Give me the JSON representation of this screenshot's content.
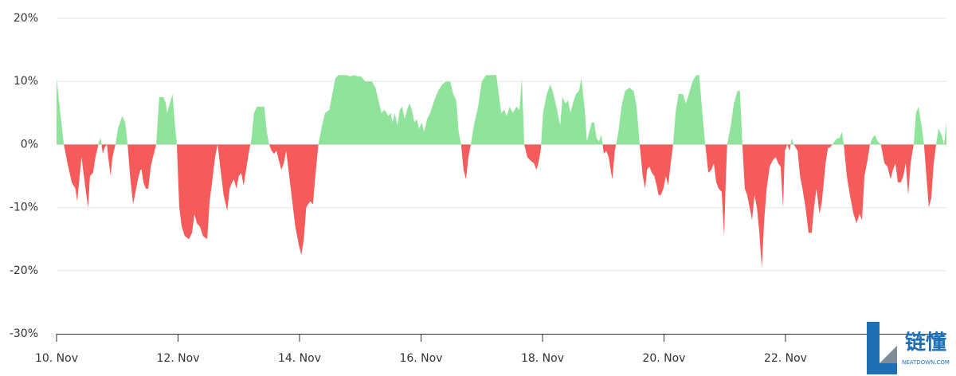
{
  "chart_data": {
    "type": "area",
    "x": [
      10.0,
      10.05,
      10.12,
      10.18,
      10.25,
      10.31,
      10.34,
      10.38,
      10.41,
      10.45,
      10.49,
      10.52,
      10.55,
      10.6,
      10.64,
      10.7,
      10.73,
      10.76,
      10.79,
      10.83,
      10.85,
      10.89,
      10.92,
      10.97,
      11.01,
      11.08,
      11.13,
      11.17,
      11.21,
      11.26,
      11.3,
      11.34,
      11.38,
      11.4,
      11.43,
      11.47,
      11.51,
      11.55,
      11.6,
      11.64,
      11.69,
      11.76,
      11.8,
      11.82,
      11.88,
      11.91,
      11.94,
      11.98,
      12.02,
      12.06,
      12.11,
      12.18,
      12.23,
      12.27,
      12.31,
      12.36,
      12.41,
      12.48,
      12.52,
      12.56,
      12.61,
      12.65,
      12.7,
      12.75,
      12.81,
      12.85,
      12.89,
      12.92,
      12.96,
      13.0,
      13.04,
      13.08,
      13.12,
      13.17,
      13.21,
      13.25,
      13.3,
      13.37,
      13.42,
      13.46,
      13.5,
      13.54,
      13.58,
      13.62,
      13.66,
      13.7,
      13.74,
      13.78,
      13.83,
      13.88,
      13.93,
      13.99,
      14.03,
      14.07,
      14.11,
      14.14,
      14.18,
      14.22,
      14.26,
      14.31,
      14.37,
      14.42,
      14.49,
      14.54,
      14.59,
      14.64,
      14.71,
      14.77,
      14.84,
      14.89,
      14.96,
      15.01,
      15.08,
      15.13,
      15.19,
      15.25,
      15.3,
      15.35,
      15.4,
      15.46,
      15.5,
      15.53,
      15.57,
      15.61,
      15.65,
      15.69,
      15.73,
      15.77,
      15.81,
      15.85,
      15.89,
      15.93,
      15.97,
      16.01,
      16.05,
      16.1,
      16.15,
      16.22,
      16.28,
      16.35,
      16.41,
      16.48,
      16.53,
      16.58,
      16.62,
      16.66,
      16.7,
      16.74,
      16.78,
      16.82,
      16.87,
      16.94,
      17.0,
      17.07,
      17.13,
      17.2,
      17.24,
      17.28,
      17.32,
      17.37,
      17.41,
      17.46,
      17.51,
      17.57,
      17.62,
      17.66,
      17.7,
      17.75,
      17.8,
      17.86,
      17.9,
      17.93,
      17.97,
      18.01,
      18.07,
      18.13,
      18.18,
      18.24,
      18.29,
      18.33,
      18.38,
      18.42,
      18.46,
      18.5,
      18.55,
      18.6,
      18.64,
      18.7,
      18.73,
      18.77,
      18.81,
      18.85,
      18.89,
      18.93,
      18.97,
      19.01,
      19.05,
      19.09,
      19.13,
      19.15,
      19.19,
      19.25,
      19.3,
      19.36,
      19.43,
      19.5,
      19.55,
      19.6,
      19.65,
      19.69,
      19.72,
      19.76,
      19.8,
      19.84,
      19.88,
      19.91,
      19.95,
      19.99,
      20.03,
      20.07,
      20.11,
      20.15,
      20.19,
      20.24,
      20.31,
      20.36,
      20.41,
      20.47,
      20.53,
      20.58,
      20.64,
      20.68,
      20.73,
      20.78,
      20.82,
      20.86,
      20.9,
      20.95,
      20.99,
      21.02,
      21.04,
      21.1,
      21.15,
      21.21,
      21.25,
      21.29,
      21.33,
      21.37,
      21.41,
      21.45,
      21.49,
      21.53,
      21.57,
      21.61,
      21.65,
      21.69,
      21.74,
      21.79,
      21.84,
      21.88,
      21.92,
      21.96,
      21.99,
      22.03,
      22.07,
      22.1,
      22.14,
      22.2,
      22.24,
      22.28,
      22.33,
      22.38,
      22.43,
      22.47,
      22.51,
      22.56,
      22.6,
      22.66,
      22.7,
      22.73,
      22.77,
      22.81,
      22.85,
      22.89,
      22.93,
      22.96,
      23.01,
      23.06,
      23.12,
      23.17,
      23.22,
      23.26,
      23.3,
      23.35,
      23.39,
      23.43,
      23.47,
      23.52,
      23.57,
      23.63,
      23.68,
      23.73,
      23.77,
      23.81,
      23.85,
      23.9,
      23.94,
      23.98,
      24.02,
      24.06,
      24.11,
      24.15,
      24.19,
      24.24,
      24.28,
      24.32,
      24.36,
      24.4,
      24.44,
      24.48,
      24.52,
      24.57,
      24.61,
      24.65
    ],
    "values": [
      10.5,
      6,
      0,
      -3,
      -6,
      -7,
      -9,
      -5,
      -2,
      -5,
      -8,
      -10,
      -5,
      -4.5,
      -2,
      0.5,
      1,
      -1.5,
      -0.5,
      0,
      -2,
      -5,
      -2,
      0,
      2.5,
      4.5,
      3.5,
      0,
      -5,
      -9.5,
      -7.5,
      -5.5,
      -4,
      -4,
      -6,
      -7,
      -7,
      -3.5,
      -1.5,
      0,
      7.5,
      7.5,
      6.5,
      5,
      7,
      8,
      4,
      0,
      -10,
      -13,
      -14.5,
      -15,
      -14,
      -11,
      -12.5,
      -13,
      -14.5,
      -15,
      -9,
      -6,
      -2,
      0,
      -4,
      -8,
      -10.5,
      -7,
      -6,
      -5.5,
      -7,
      -5,
      -4.5,
      -6.5,
      -4,
      -1,
      1,
      5,
      6,
      6,
      6,
      2,
      0,
      -1,
      -1.5,
      -1,
      -2.5,
      -4,
      -3,
      -1,
      -5,
      -9,
      -13,
      -16,
      -17.5,
      -15,
      -10,
      -9.5,
      -9,
      -9.5,
      -5,
      0,
      3,
      5,
      5.5,
      8,
      10.5,
      11,
      11,
      11,
      10.8,
      11,
      10.8,
      10.8,
      10,
      10,
      10,
      9,
      7,
      5,
      5.5,
      4.5,
      5,
      3.5,
      5,
      3,
      5.5,
      6,
      4,
      5.5,
      6.5,
      5.5,
      3.5,
      4,
      2.5,
      3.5,
      2,
      4,
      5,
      7,
      8.5,
      9.5,
      10,
      10,
      8,
      7,
      2,
      0,
      -4,
      -5.5,
      -2,
      0,
      3,
      6,
      10,
      11,
      11,
      11,
      11,
      8,
      5,
      5.5,
      4.5,
      6,
      5,
      6,
      5.5,
      10.5,
      0,
      -2,
      -2.5,
      -3,
      -4,
      -3,
      -1,
      5,
      8,
      9.5,
      8,
      5.5,
      3,
      7.5,
      6.5,
      7,
      5,
      6.5,
      8,
      8.5,
      10.5,
      5,
      0.5,
      2,
      3.5,
      3.5,
      1,
      0.5,
      1.5,
      -1.5,
      -1,
      -2,
      -4.5,
      -5.5,
      -1,
      2,
      6,
      8.5,
      9,
      8.5,
      6,
      0,
      -5,
      -7,
      -4,
      -3.5,
      -4.5,
      -5,
      -6.5,
      -8,
      -8,
      -7,
      -5,
      -6.5,
      -3,
      0,
      5,
      8,
      8,
      6.5,
      8,
      10,
      11,
      11,
      4,
      0,
      -4.5,
      -4,
      -3,
      -6,
      -7,
      -7.5,
      -14.5,
      -5,
      0,
      3,
      6.5,
      8.5,
      8.5,
      0,
      -7,
      -8,
      -10,
      -12,
      -8,
      -10,
      -14,
      -19.5,
      -12,
      -7,
      -3.5,
      -2.5,
      -2,
      -3,
      -3.5,
      -10,
      -1,
      0,
      -1,
      1,
      0,
      -1,
      -5,
      -7,
      -10,
      -14,
      -14,
      -10,
      -7,
      -11,
      -9,
      -3,
      -0.5,
      -0.5,
      0,
      0.5,
      1,
      1,
      2,
      0,
      -5,
      -8,
      -11,
      -12.5,
      -11,
      -12,
      -5,
      -2.5,
      0,
      1,
      1.5,
      0.5,
      0,
      -3,
      -3.5,
      -5.5,
      -4,
      -3,
      -6,
      -6,
      -5,
      -3,
      -8,
      -3,
      0,
      5,
      6,
      3,
      0,
      -5,
      -10,
      -8.5,
      -3,
      0,
      2.5,
      1.5,
      0,
      3.5
    ],
    "positive_color": "#8fe39b",
    "negative_color": "#f55b5b",
    "xlim": [
      10,
      24.65
    ],
    "xticks": [
      {
        "value": 10,
        "label": "10. Nov"
      },
      {
        "value": 12,
        "label": "12. Nov"
      },
      {
        "value": 14,
        "label": "14. Nov"
      },
      {
        "value": 16,
        "label": "16. Nov"
      },
      {
        "value": 18,
        "label": "18. Nov"
      },
      {
        "value": 20,
        "label": "20. Nov"
      },
      {
        "value": 22,
        "label": "22. Nov"
      }
    ],
    "ylim": [
      -30,
      20
    ],
    "yticks": [
      {
        "value": -30,
        "label": "-30%"
      },
      {
        "value": -20,
        "label": "-20%"
      },
      {
        "value": -10,
        "label": "-10%"
      },
      {
        "value": 0,
        "label": "0%"
      },
      {
        "value": 10,
        "label": "10%"
      },
      {
        "value": 20,
        "label": "20%"
      }
    ],
    "grid": true
  },
  "watermark": {
    "text": "链懂",
    "subtext": "NEATDOWN.COM"
  }
}
